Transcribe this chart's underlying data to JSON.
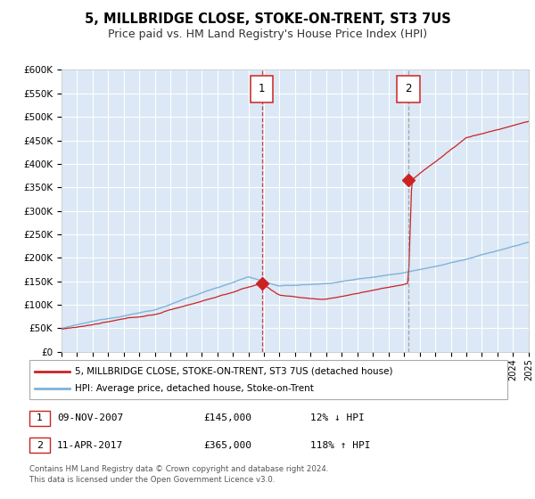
{
  "title": "5, MILLBRIDGE CLOSE, STOKE-ON-TRENT, ST3 7US",
  "subtitle": "Price paid vs. HM Land Registry's House Price Index (HPI)",
  "ylim": [
    0,
    600000
  ],
  "xlim_start": 1995,
  "xlim_end": 2025,
  "ytick_labels": [
    "£0",
    "£50K",
    "£100K",
    "£150K",
    "£200K",
    "£250K",
    "£300K",
    "£350K",
    "£400K",
    "£450K",
    "£500K",
    "£550K",
    "£600K"
  ],
  "ytick_values": [
    0,
    50000,
    100000,
    150000,
    200000,
    250000,
    300000,
    350000,
    400000,
    450000,
    500000,
    550000,
    600000
  ],
  "hpi_color": "#7fb3d9",
  "price_color": "#cc2222",
  "bg_color": "#dce8f5",
  "grid_color": "#ffffff",
  "marker1_x": 2007.86,
  "marker1_y": 145000,
  "marker2_x": 2017.28,
  "marker2_y": 365000,
  "legend_line1": "5, MILLBRIDGE CLOSE, STOKE-ON-TRENT, ST3 7US (detached house)",
  "legend_line2": "HPI: Average price, detached house, Stoke-on-Trent",
  "table_row1": [
    "1",
    "09-NOV-2007",
    "£145,000",
    "12% ↓ HPI"
  ],
  "table_row2": [
    "2",
    "11-APR-2017",
    "£365,000",
    "118% ↑ HPI"
  ],
  "footnote": "Contains HM Land Registry data © Crown copyright and database right 2024.\nThis data is licensed under the Open Government Licence v3.0.",
  "title_fontsize": 10.5,
  "subtitle_fontsize": 9
}
